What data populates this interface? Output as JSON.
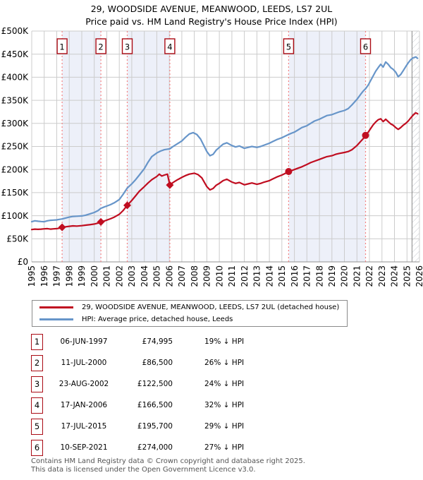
{
  "title": {
    "line1": "29, WOODSIDE AVENUE, MEANWOOD, LEEDS, LS7 2UL",
    "line2": "Price paid vs. HM Land Registry's House Price Index (HPI)"
  },
  "chart_data": {
    "type": "line",
    "x_range": [
      1995,
      2026
    ],
    "y_range": [
      0,
      500000
    ],
    "y_ticks": [
      0,
      50000,
      100000,
      150000,
      200000,
      250000,
      300000,
      350000,
      400000,
      450000,
      500000
    ],
    "y_tick_labels": [
      "£0",
      "£50K",
      "£100K",
      "£150K",
      "£200K",
      "£250K",
      "£300K",
      "£350K",
      "£400K",
      "£450K",
      "£500K"
    ],
    "x_tick_labels": [
      "1995",
      "1996",
      "1997",
      "1998",
      "1999",
      "2000",
      "2001",
      "2002",
      "2003",
      "2004",
      "2005",
      "2006",
      "2007",
      "2008",
      "2009",
      "2010",
      "2011",
      "2012",
      "2013",
      "2014",
      "2015",
      "2016",
      "2017",
      "2018",
      "2019",
      "2020",
      "2021",
      "2022",
      "2023",
      "2024",
      "2025",
      "2026"
    ],
    "grid": true,
    "legend_position": "bottom",
    "future_hatch_start": 2025.4,
    "ownership_bands": [
      [
        1997.43,
        2000.53
      ],
      [
        2002.64,
        2006.04
      ],
      [
        2015.54,
        2021.69
      ]
    ],
    "colors": {
      "price_line": "#c00d20",
      "hpi_line": "#6795c9",
      "band_fill": "#edf0f9",
      "grid_line": "#cccccc",
      "axis_line": "#909090",
      "sale_dash_line": "#f48282",
      "badge_border": "#aa0a14",
      "hatch_line": "#bfc3cb"
    },
    "series": [
      {
        "name": "29, WOODSIDE AVENUE, MEANWOOD, LEEDS, LS7 2UL (detached house)",
        "color": "#c00d20",
        "points": [
          [
            1995.0,
            70000
          ],
          [
            1995.25,
            71000
          ],
          [
            1995.5,
            70500
          ],
          [
            1995.75,
            71000
          ],
          [
            1996.0,
            71500
          ],
          [
            1996.25,
            72000
          ],
          [
            1996.5,
            71000
          ],
          [
            1996.75,
            71500
          ],
          [
            1997.0,
            72000
          ],
          [
            1997.2,
            73000
          ],
          [
            1997.43,
            74995
          ],
          [
            1997.7,
            76000
          ],
          [
            1998.0,
            77000
          ],
          [
            1998.3,
            78000
          ],
          [
            1998.6,
            77500
          ],
          [
            1999.0,
            78500
          ],
          [
            1999.3,
            79500
          ],
          [
            1999.6,
            80500
          ],
          [
            2000.0,
            82000
          ],
          [
            2000.3,
            84000
          ],
          [
            2000.53,
            86500
          ],
          [
            2000.8,
            88500
          ],
          [
            2001.0,
            90500
          ],
          [
            2001.3,
            93500
          ],
          [
            2001.6,
            97000
          ],
          [
            2002.0,
            103000
          ],
          [
            2002.3,
            111000
          ],
          [
            2002.64,
            122500
          ],
          [
            2003.0,
            133000
          ],
          [
            2003.3,
            143000
          ],
          [
            2003.6,
            153000
          ],
          [
            2004.0,
            163000
          ],
          [
            2004.3,
            171000
          ],
          [
            2004.6,
            178000
          ],
          [
            2005.0,
            185000
          ],
          [
            2005.2,
            190000
          ],
          [
            2005.4,
            186000
          ],
          [
            2005.6,
            188000
          ],
          [
            2005.85,
            190000
          ],
          [
            2006.04,
            166500
          ],
          [
            2006.3,
            172000
          ],
          [
            2006.6,
            177000
          ],
          [
            2007.0,
            183000
          ],
          [
            2007.3,
            187000
          ],
          [
            2007.6,
            190000
          ],
          [
            2008.0,
            192000
          ],
          [
            2008.3,
            189000
          ],
          [
            2008.6,
            182000
          ],
          [
            2009.0,
            163000
          ],
          [
            2009.25,
            156000
          ],
          [
            2009.5,
            159000
          ],
          [
            2009.75,
            166000
          ],
          [
            2010.0,
            170000
          ],
          [
            2010.3,
            176000
          ],
          [
            2010.6,
            179000
          ],
          [
            2011.0,
            173000
          ],
          [
            2011.3,
            170000
          ],
          [
            2011.6,
            172000
          ],
          [
            2012.0,
            167000
          ],
          [
            2012.3,
            169000
          ],
          [
            2012.6,
            171000
          ],
          [
            2013.0,
            168000
          ],
          [
            2013.3,
            170000
          ],
          [
            2013.6,
            173000
          ],
          [
            2014.0,
            176000
          ],
          [
            2014.3,
            180000
          ],
          [
            2014.6,
            184000
          ],
          [
            2015.0,
            188000
          ],
          [
            2015.3,
            192000
          ],
          [
            2015.54,
            195700
          ],
          [
            2015.8,
            198000
          ],
          [
            2016.0,
            200000
          ],
          [
            2016.3,
            203000
          ],
          [
            2016.6,
            206000
          ],
          [
            2017.0,
            211000
          ],
          [
            2017.3,
            215000
          ],
          [
            2017.6,
            218000
          ],
          [
            2018.0,
            222000
          ],
          [
            2018.3,
            225000
          ],
          [
            2018.6,
            228000
          ],
          [
            2019.0,
            230000
          ],
          [
            2019.3,
            233000
          ],
          [
            2019.6,
            235000
          ],
          [
            2020.0,
            237000
          ],
          [
            2020.3,
            239000
          ],
          [
            2020.6,
            243000
          ],
          [
            2021.0,
            252000
          ],
          [
            2021.3,
            261000
          ],
          [
            2021.5,
            267000
          ],
          [
            2021.69,
            274000
          ],
          [
            2021.9,
            281000
          ],
          [
            2022.1,
            289000
          ],
          [
            2022.3,
            297000
          ],
          [
            2022.5,
            303000
          ],
          [
            2022.7,
            308000
          ],
          [
            2022.9,
            310000
          ],
          [
            2023.1,
            304000
          ],
          [
            2023.3,
            309000
          ],
          [
            2023.5,
            304000
          ],
          [
            2023.7,
            299000
          ],
          [
            2023.9,
            296000
          ],
          [
            2024.1,
            291000
          ],
          [
            2024.3,
            287000
          ],
          [
            2024.5,
            291000
          ],
          [
            2024.7,
            296000
          ],
          [
            2024.9,
            300000
          ],
          [
            2025.1,
            305000
          ],
          [
            2025.3,
            312000
          ],
          [
            2025.5,
            318000
          ],
          [
            2025.7,
            323000
          ],
          [
            2025.85,
            321000
          ]
        ]
      },
      {
        "name": "HPI: Average price, detached house, Leeds",
        "color": "#6795c9",
        "points": [
          [
            1995.0,
            87000
          ],
          [
            1995.25,
            89000
          ],
          [
            1995.5,
            88000
          ],
          [
            1995.75,
            87500
          ],
          [
            1996.0,
            87000
          ],
          [
            1996.25,
            89000
          ],
          [
            1996.5,
            90000
          ],
          [
            1996.75,
            90500
          ],
          [
            1997.0,
            91000
          ],
          [
            1997.2,
            92000
          ],
          [
            1997.43,
            93000
          ],
          [
            1997.7,
            95000
          ],
          [
            1998.0,
            97000
          ],
          [
            1998.3,
            98500
          ],
          [
            1998.6,
            99000
          ],
          [
            1999.0,
            99500
          ],
          [
            1999.3,
            101000
          ],
          [
            1999.6,
            103500
          ],
          [
            2000.0,
            107000
          ],
          [
            2000.3,
            111000
          ],
          [
            2000.53,
            116000
          ],
          [
            2000.8,
            119000
          ],
          [
            2001.0,
            121000
          ],
          [
            2001.3,
            124000
          ],
          [
            2001.6,
            128000
          ],
          [
            2002.0,
            135000
          ],
          [
            2002.3,
            146000
          ],
          [
            2002.64,
            160000
          ],
          [
            2003.0,
            169000
          ],
          [
            2003.3,
            178000
          ],
          [
            2003.6,
            188000
          ],
          [
            2004.0,
            202000
          ],
          [
            2004.3,
            216000
          ],
          [
            2004.6,
            228000
          ],
          [
            2005.0,
            236000
          ],
          [
            2005.3,
            240000
          ],
          [
            2005.6,
            243000
          ],
          [
            2006.04,
            245000
          ],
          [
            2006.3,
            250000
          ],
          [
            2006.6,
            255000
          ],
          [
            2007.0,
            262000
          ],
          [
            2007.3,
            270000
          ],
          [
            2007.6,
            277000
          ],
          [
            2007.9,
            280000
          ],
          [
            2008.2,
            276000
          ],
          [
            2008.5,
            266000
          ],
          [
            2008.8,
            250000
          ],
          [
            2009.0,
            239000
          ],
          [
            2009.25,
            230000
          ],
          [
            2009.5,
            233000
          ],
          [
            2009.75,
            242000
          ],
          [
            2010.0,
            248000
          ],
          [
            2010.3,
            255000
          ],
          [
            2010.6,
            258000
          ],
          [
            2011.0,
            252000
          ],
          [
            2011.3,
            249000
          ],
          [
            2011.6,
            251000
          ],
          [
            2012.0,
            246000
          ],
          [
            2012.3,
            248000
          ],
          [
            2012.6,
            250000
          ],
          [
            2013.0,
            248000
          ],
          [
            2013.3,
            250000
          ],
          [
            2013.6,
            253000
          ],
          [
            2014.0,
            257000
          ],
          [
            2014.3,
            261000
          ],
          [
            2014.6,
            265000
          ],
          [
            2015.0,
            269000
          ],
          [
            2015.3,
            273000
          ],
          [
            2015.54,
            276000
          ],
          [
            2015.8,
            279000
          ],
          [
            2016.0,
            281000
          ],
          [
            2016.3,
            286000
          ],
          [
            2016.6,
            291000
          ],
          [
            2017.0,
            295000
          ],
          [
            2017.3,
            300000
          ],
          [
            2017.6,
            305000
          ],
          [
            2018.0,
            309000
          ],
          [
            2018.3,
            313000
          ],
          [
            2018.6,
            317000
          ],
          [
            2019.0,
            319000
          ],
          [
            2019.3,
            322000
          ],
          [
            2019.6,
            325000
          ],
          [
            2020.0,
            328000
          ],
          [
            2020.3,
            332000
          ],
          [
            2020.6,
            340000
          ],
          [
            2021.0,
            352000
          ],
          [
            2021.3,
            363000
          ],
          [
            2021.5,
            370000
          ],
          [
            2021.69,
            375000
          ],
          [
            2021.9,
            383000
          ],
          [
            2022.1,
            393000
          ],
          [
            2022.3,
            403000
          ],
          [
            2022.5,
            413000
          ],
          [
            2022.7,
            421000
          ],
          [
            2022.9,
            428000
          ],
          [
            2023.1,
            422000
          ],
          [
            2023.3,
            433000
          ],
          [
            2023.5,
            428000
          ],
          [
            2023.7,
            421000
          ],
          [
            2023.9,
            417000
          ],
          [
            2024.1,
            411000
          ],
          [
            2024.3,
            401000
          ],
          [
            2024.5,
            406000
          ],
          [
            2024.7,
            414000
          ],
          [
            2024.9,
            423000
          ],
          [
            2025.1,
            431000
          ],
          [
            2025.3,
            438000
          ],
          [
            2025.5,
            442000
          ],
          [
            2025.7,
            444000
          ],
          [
            2025.85,
            441000
          ]
        ]
      }
    ],
    "sale_markers": [
      {
        "n": "1",
        "year": 1997.43,
        "price": 74995,
        "shape": "diamond"
      },
      {
        "n": "2",
        "year": 2000.53,
        "price": 86500,
        "shape": "diamond"
      },
      {
        "n": "3",
        "year": 2002.64,
        "price": 122500,
        "shape": "diamond"
      },
      {
        "n": "4",
        "year": 2006.04,
        "price": 166500,
        "shape": "diamond"
      },
      {
        "n": "5",
        "year": 2015.54,
        "price": 195700,
        "shape": "circle"
      },
      {
        "n": "6",
        "year": 2021.69,
        "price": 274000,
        "shape": "circle"
      }
    ]
  },
  "legend": {
    "entries": [
      {
        "label": "29, WOODSIDE AVENUE, MEANWOOD, LEEDS, LS7 2UL (detached house)",
        "color": "#c00d20"
      },
      {
        "label": "HPI: Average price, detached house, Leeds",
        "color": "#6795c9"
      }
    ]
  },
  "table": {
    "rows": [
      {
        "num": "1",
        "date": "06-JUN-1997",
        "price": "£74,995",
        "vs_hpi": "19% ↓ HPI"
      },
      {
        "num": "2",
        "date": "11-JUL-2000",
        "price": "£86,500",
        "vs_hpi": "26% ↓ HPI"
      },
      {
        "num": "3",
        "date": "23-AUG-2002",
        "price": "£122,500",
        "vs_hpi": "24% ↓ HPI"
      },
      {
        "num": "4",
        "date": "17-JAN-2006",
        "price": "£166,500",
        "vs_hpi": "32% ↓ HPI"
      },
      {
        "num": "5",
        "date": "17-JUL-2015",
        "price": "£195,700",
        "vs_hpi": "29% ↓ HPI"
      },
      {
        "num": "6",
        "date": "10-SEP-2021",
        "price": "£274,000",
        "vs_hpi": "27% ↓ HPI"
      }
    ]
  },
  "footer": {
    "line1": "Contains HM Land Registry data © Crown copyright and database right 2025.",
    "line2": "This data is licensed under the Open Government Licence v3.0."
  }
}
